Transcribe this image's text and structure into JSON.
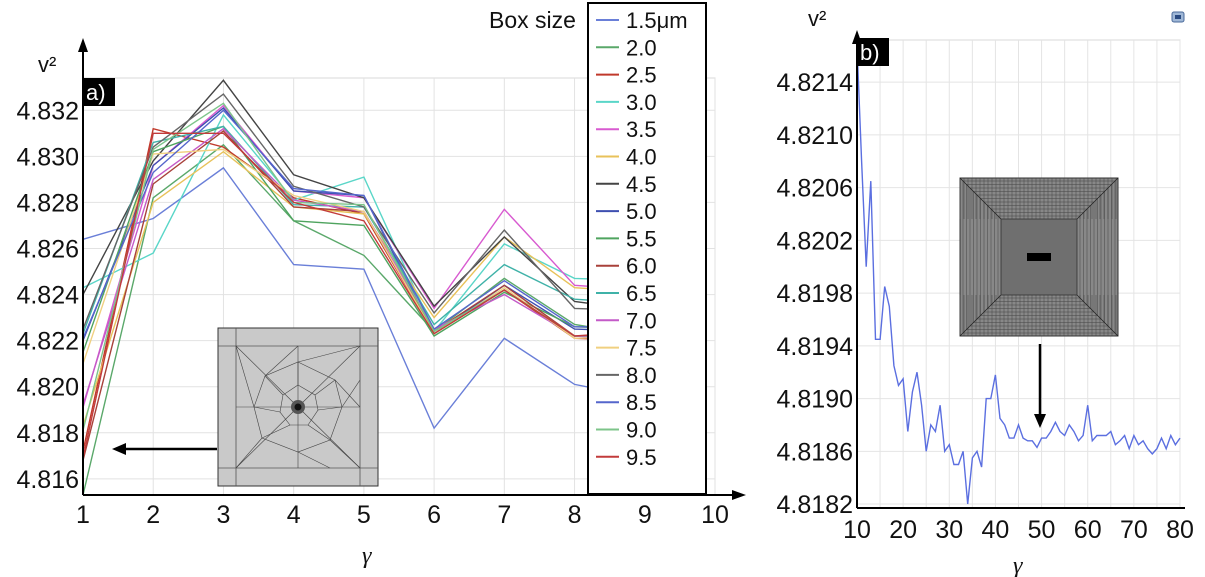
{
  "chart_data": [
    {
      "panel_label": "a)",
      "type": "line",
      "ylabel": "v²",
      "xlabel": "γ",
      "xlim": [
        1,
        10
      ],
      "ylim": [
        4.8153,
        4.8334
      ],
      "xticks": [
        1,
        2,
        3,
        4,
        5,
        6,
        7,
        8,
        9,
        10
      ],
      "x_tick_labels": [
        "1",
        "2",
        "3",
        "4",
        "5",
        "6",
        "7",
        "8",
        "9",
        "10"
      ],
      "yticks": [
        4.816,
        4.818,
        4.82,
        4.822,
        4.824,
        4.826,
        4.828,
        4.83,
        4.832
      ],
      "y_tick_labels": [
        "4.816",
        "4.818",
        "4.820",
        "4.822",
        "4.824",
        "4.826",
        "4.828",
        "4.830",
        "4.832"
      ],
      "grid": true,
      "legend_title": "Box size",
      "legend_position": "top-right",
      "x": [
        1,
        2,
        3,
        4,
        5,
        6,
        7,
        8,
        9
      ],
      "series": [
        {
          "name": "1.5μm",
          "color": "#6a7fd8",
          "values": [
            4.8264,
            4.8273,
            4.8295,
            4.8253,
            4.8251,
            4.8182,
            4.8221,
            4.8201,
            4.8195
          ]
        },
        {
          "name": "2.0",
          "color": "#5aa86a",
          "values": [
            4.8153,
            4.8282,
            4.8305,
            4.8272,
            4.8257,
            4.8224,
            4.8247,
            4.8227,
            4.8222
          ]
        },
        {
          "name": "2.5",
          "color": "#c0392b",
          "values": [
            4.8172,
            4.8312,
            4.8304,
            4.8282,
            4.8275,
            4.8223,
            4.8242,
            4.8221,
            4.822
          ]
        },
        {
          "name": "3.0",
          "color": "#5ad6c8",
          "values": [
            4.8243,
            4.8258,
            4.8318,
            4.8281,
            4.8291,
            4.8224,
            4.8262,
            4.8247,
            4.8246
          ]
        },
        {
          "name": "3.5",
          "color": "#d85ad0",
          "values": [
            4.8191,
            4.8296,
            4.8322,
            4.8285,
            4.8282,
            4.8234,
            4.8277,
            4.8244,
            4.8242
          ]
        },
        {
          "name": "4.0",
          "color": "#e8c25a",
          "values": [
            4.8183,
            4.828,
            4.8302,
            4.8278,
            4.8275,
            4.823,
            4.8265,
            4.8243,
            4.8241
          ]
        },
        {
          "name": "4.5",
          "color": "#444444",
          "values": [
            4.824,
            4.8298,
            4.8333,
            4.8292,
            4.8282,
            4.8235,
            4.8265,
            4.8237,
            4.8233
          ]
        },
        {
          "name": "5.0",
          "color": "#3e4fb0",
          "values": [
            4.822,
            4.8296,
            4.8321,
            4.8285,
            4.8283,
            4.8223,
            4.8244,
            4.8225,
            4.8224
          ]
        },
        {
          "name": "5.5",
          "color": "#4fa45f",
          "values": [
            4.8215,
            4.8302,
            4.8313,
            4.8272,
            4.827,
            4.8222,
            4.8241,
            4.8226,
            4.8225
          ]
        },
        {
          "name": "6.0",
          "color": "#a8413a",
          "values": [
            4.8168,
            4.8288,
            4.8311,
            4.8278,
            4.8276,
            4.8224,
            4.8244,
            4.8222,
            4.8221
          ]
        },
        {
          "name": "6.5",
          "color": "#3fb2a8",
          "values": [
            4.8223,
            4.8306,
            4.8313,
            4.8279,
            4.8278,
            4.8227,
            4.8253,
            4.8238,
            4.8236
          ]
        },
        {
          "name": "7.0",
          "color": "#c45ac8",
          "values": [
            4.8192,
            4.829,
            4.8312,
            4.8281,
            4.8276,
            4.8225,
            4.824,
            4.8222,
            4.822
          ]
        },
        {
          "name": "7.5",
          "color": "#f0d080",
          "values": [
            4.821,
            4.8301,
            4.8303,
            4.8283,
            4.8276,
            4.8223,
            4.8243,
            4.8221,
            4.8222
          ]
        },
        {
          "name": "8.0",
          "color": "#666666",
          "values": [
            4.8225,
            4.8304,
            4.8327,
            4.8287,
            4.8278,
            4.8232,
            4.8268,
            4.8234,
            4.8233
          ]
        },
        {
          "name": "8.5",
          "color": "#5566cc",
          "values": [
            4.8221,
            4.8293,
            4.832,
            4.8286,
            4.8283,
            4.8225,
            4.8246,
            4.8226,
            4.8226
          ]
        },
        {
          "name": "9.0",
          "color": "#7dc48a",
          "values": [
            4.8181,
            4.8303,
            4.8323,
            4.828,
            4.8279,
            4.8224,
            4.8242,
            4.8222,
            4.8223
          ]
        },
        {
          "name": "9.5",
          "color": "#c23b3b",
          "values": [
            4.8169,
            4.831,
            4.831,
            4.828,
            4.8272,
            4.8223,
            4.8242,
            4.8222,
            4.8224
          ]
        }
      ]
    },
    {
      "panel_label": "b)",
      "type": "line",
      "ylabel": "v²",
      "xlabel": "γ",
      "xlim": [
        10,
        80
      ],
      "ylim": [
        4.81817,
        4.82172
      ],
      "xticks": [
        10,
        20,
        30,
        40,
        50,
        60,
        70,
        80
      ],
      "x_tick_labels": [
        "10",
        "20",
        "30",
        "40",
        "50",
        "60",
        "70",
        "80"
      ],
      "yticks": [
        4.8182,
        4.8186,
        4.819,
        4.8194,
        4.8198,
        4.8202,
        4.8206,
        4.821,
        4.8214
      ],
      "y_tick_labels": [
        "4.8182",
        "4.8186",
        "4.8190",
        "4.8194",
        "4.8198",
        "4.8202",
        "4.8206",
        "4.8210",
        "4.8214"
      ],
      "grid": true,
      "series": [
        {
          "color": "#5b6fe0",
          "x": [
            10,
            11,
            12,
            13,
            14,
            15,
            16,
            17,
            18,
            19,
            20,
            21,
            22,
            23,
            24,
            25,
            26,
            27,
            28,
            29,
            30,
            31,
            32,
            33,
            34,
            35,
            36,
            37,
            38,
            39,
            40,
            41,
            42,
            43,
            44,
            45,
            46,
            47,
            48,
            49,
            50,
            51,
            52,
            53,
            54,
            55,
            56,
            57,
            58,
            59,
            60,
            61,
            62,
            63,
            64,
            65,
            66,
            67,
            68,
            69,
            70,
            71,
            72,
            73,
            74,
            75,
            76,
            77,
            78,
            79,
            80
          ],
          "values": [
            4.82168,
            4.8208,
            4.82,
            4.82065,
            4.81945,
            4.81945,
            4.81985,
            4.8197,
            4.81925,
            4.8191,
            4.81915,
            4.81875,
            4.81905,
            4.8192,
            4.81895,
            4.8186,
            4.8188,
            4.81875,
            4.81895,
            4.8186,
            4.81865,
            4.8185,
            4.8185,
            4.8186,
            4.8182,
            4.81855,
            4.8186,
            4.81848,
            4.819,
            4.819,
            4.81918,
            4.81885,
            4.8188,
            4.8187,
            4.8187,
            4.8188,
            4.8187,
            4.81868,
            4.81868,
            4.81863,
            4.8187,
            4.8187,
            4.81875,
            4.81882,
            4.81875,
            4.81872,
            4.8188,
            4.81875,
            4.81868,
            4.81872,
            4.81895,
            4.81868,
            4.81872,
            4.81872,
            4.81872,
            4.81875,
            4.81865,
            4.81868,
            4.81872,
            4.81862,
            4.81872,
            4.81865,
            4.81868,
            4.81862,
            4.81858,
            4.81862,
            4.8187,
            4.81862,
            4.81872,
            4.81865,
            4.8187
          ]
        }
      ]
    }
  ]
}
